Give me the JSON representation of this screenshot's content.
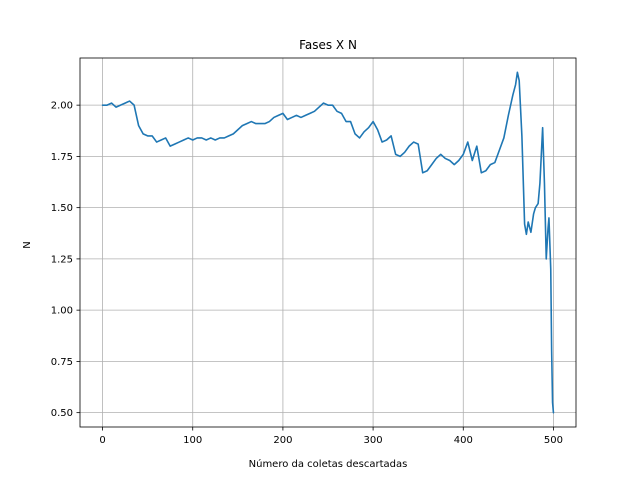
{
  "chart_data": {
    "type": "line",
    "title": "Fases X N",
    "xlabel": "Número da coletas descartadas",
    "ylabel": "N",
    "xlim": [
      -25,
      525
    ],
    "ylim": [
      0.43,
      2.23
    ],
    "xticks": [
      0,
      100,
      200,
      300,
      400,
      500
    ],
    "xtick_labels": [
      "0",
      "100",
      "200",
      "300",
      "400",
      "500"
    ],
    "yticks": [
      0.5,
      0.75,
      1.0,
      1.25,
      1.5,
      1.75,
      2.0
    ],
    "ytick_labels": [
      "0.50",
      "0.75",
      "1.00",
      "1.25",
      "1.50",
      "1.75",
      "2.00"
    ],
    "grid": true,
    "line_color": "#1f77b4",
    "series": [
      {
        "x": [
          0,
          5,
          10,
          15,
          20,
          25,
          30,
          35,
          40,
          45,
          50,
          55,
          60,
          65,
          70,
          75,
          80,
          85,
          90,
          95,
          100,
          105,
          110,
          115,
          120,
          125,
          130,
          135,
          140,
          145,
          150,
          155,
          160,
          165,
          170,
          175,
          180,
          185,
          190,
          195,
          200,
          205,
          210,
          215,
          220,
          225,
          230,
          235,
          240,
          245,
          250,
          255,
          260,
          265,
          270,
          275,
          280,
          285,
          290,
          295,
          300,
          305,
          310,
          315,
          320,
          325,
          330,
          335,
          340,
          345,
          350,
          355,
          360,
          365,
          370,
          375,
          380,
          385,
          390,
          395,
          400,
          405,
          410,
          415,
          420,
          425,
          430,
          435,
          440,
          445,
          450,
          455,
          458,
          460,
          462,
          465,
          468,
          470,
          472,
          475,
          478,
          480,
          483,
          485,
          487,
          488,
          490,
          492,
          494,
          495,
          497,
          498,
          499,
          500
        ],
        "y": [
          2.0,
          2.0,
          2.01,
          1.99,
          2.0,
          2.01,
          2.02,
          2.0,
          1.9,
          1.86,
          1.85,
          1.85,
          1.82,
          1.83,
          1.84,
          1.8,
          1.81,
          1.82,
          1.83,
          1.84,
          1.83,
          1.84,
          1.84,
          1.83,
          1.84,
          1.83,
          1.84,
          1.84,
          1.85,
          1.86,
          1.88,
          1.9,
          1.91,
          1.92,
          1.91,
          1.91,
          1.91,
          1.92,
          1.94,
          1.95,
          1.96,
          1.93,
          1.94,
          1.95,
          1.94,
          1.95,
          1.96,
          1.97,
          1.99,
          2.01,
          2.0,
          2.0,
          1.97,
          1.96,
          1.92,
          1.92,
          1.86,
          1.84,
          1.87,
          1.89,
          1.92,
          1.88,
          1.82,
          1.83,
          1.85,
          1.76,
          1.75,
          1.77,
          1.8,
          1.82,
          1.81,
          1.67,
          1.68,
          1.71,
          1.74,
          1.76,
          1.74,
          1.73,
          1.71,
          1.73,
          1.76,
          1.82,
          1.73,
          1.8,
          1.67,
          1.68,
          1.71,
          1.72,
          1.78,
          1.84,
          1.95,
          2.05,
          2.1,
          2.16,
          2.12,
          1.85,
          1.42,
          1.37,
          1.43,
          1.38,
          1.47,
          1.5,
          1.52,
          1.62,
          1.8,
          1.89,
          1.62,
          1.25,
          1.4,
          1.45,
          1.2,
          0.8,
          0.55,
          0.5
        ]
      }
    ]
  }
}
